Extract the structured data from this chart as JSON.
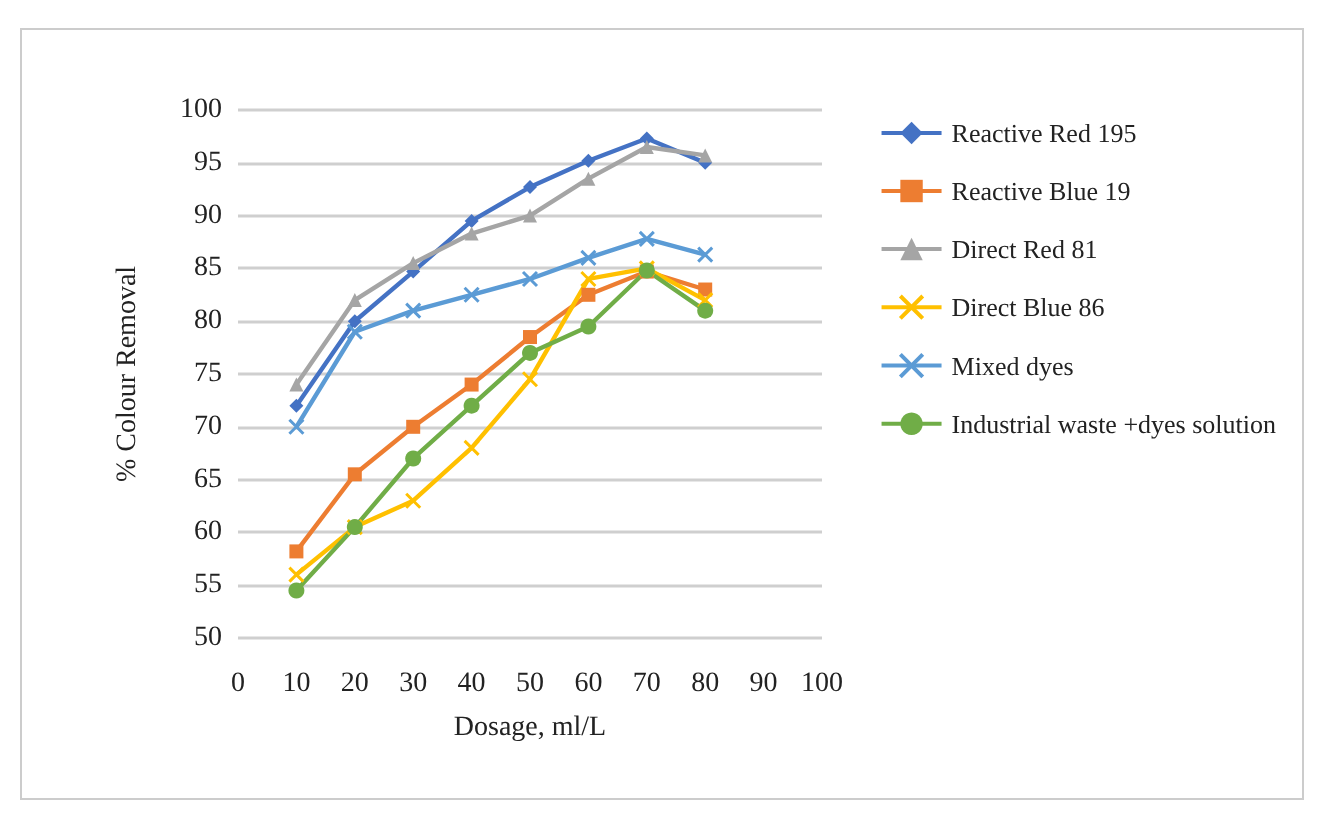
{
  "chart_data": {
    "type": "line",
    "xlabel": "Dosage, ml/L",
    "ylabel": "% Colour Removal",
    "x": [
      10,
      20,
      30,
      40,
      50,
      60,
      70,
      80
    ],
    "xlim": [
      0,
      100
    ],
    "xticks": [
      0,
      10,
      20,
      30,
      40,
      50,
      60,
      70,
      80,
      90,
      100
    ],
    "ylim": [
      50,
      100
    ],
    "yticks": [
      50,
      55,
      60,
      65,
      70,
      75,
      80,
      85,
      90,
      95,
      100
    ],
    "grid": "y",
    "legend": "right",
    "series": [
      {
        "name": "Reactive Red 195",
        "color": "#4472c4",
        "marker": "diamond",
        "values": [
          72,
          80,
          84.7,
          89.5,
          92.7,
          95.2,
          97.3,
          95
        ]
      },
      {
        "name": "Reactive Blue 19",
        "color": "#ed7d31",
        "marker": "square",
        "values": [
          58.2,
          65.5,
          70,
          74,
          78.5,
          82.5,
          84.7,
          83
        ]
      },
      {
        "name": "Direct Red 81",
        "color": "#a5a5a5",
        "marker": "triangle",
        "values": [
          74,
          82,
          85.5,
          88.3,
          90,
          93.5,
          96.5,
          95.7
        ]
      },
      {
        "name": "Direct Blue 86",
        "color": "#ffc000",
        "marker": "cross",
        "values": [
          56,
          60.5,
          63,
          68,
          74.5,
          84,
          85,
          82
        ]
      },
      {
        "name": "Mixed dyes",
        "color": "#5b9bd5",
        "marker": "cross",
        "values": [
          70,
          79,
          81,
          82.5,
          84,
          86,
          87.8,
          86.3
        ]
      },
      {
        "name": "Industrial waste +dyes solution",
        "color": "#70ad47",
        "marker": "circle",
        "values": [
          54.5,
          60.5,
          67,
          72,
          77,
          79.5,
          84.8,
          81
        ]
      }
    ]
  }
}
